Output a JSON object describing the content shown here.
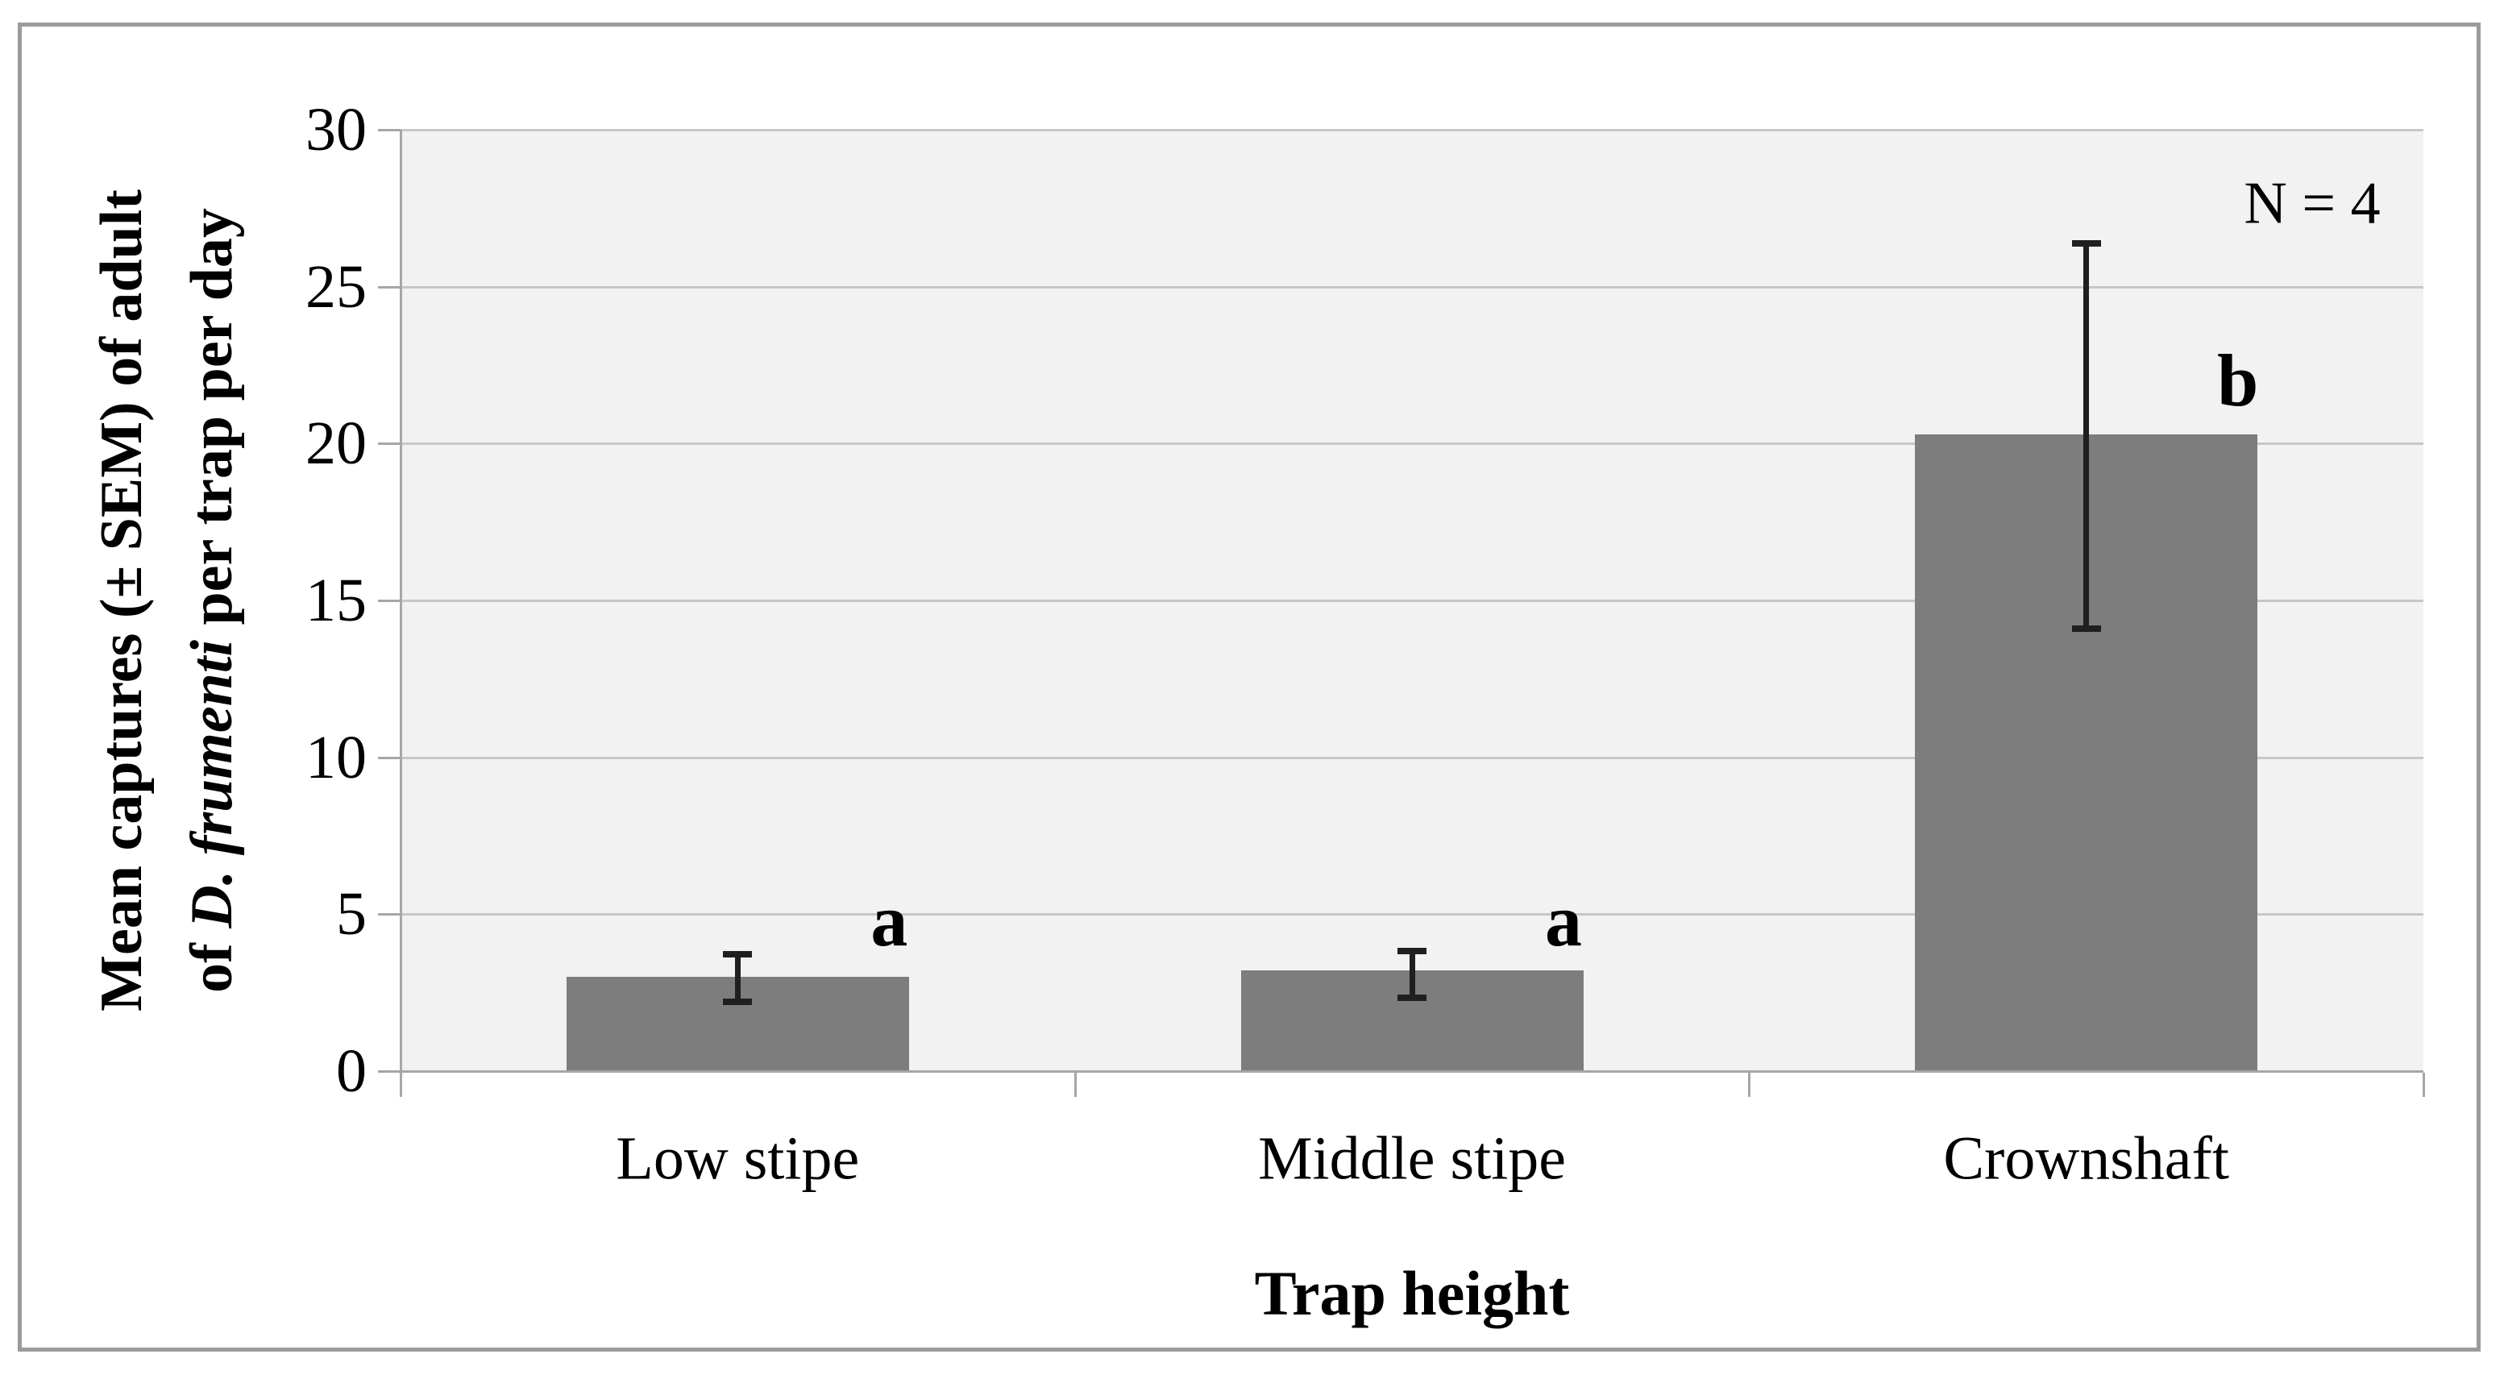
{
  "figure": {
    "annotation": "N = 4",
    "x_axis_title": "Trap height",
    "y_axis_title_line1": "Mean captures (± SEM) of adult",
    "y_axis_title_line2_prefix": "of ",
    "y_axis_title_line2_italic": "D. frumenti",
    "y_axis_title_line2_suffix": " per trap per day"
  },
  "chart_data": {
    "type": "bar",
    "title": "",
    "xlabel": "Trap height",
    "ylabel": "Mean captures (± SEM) of adult of D. frumenti per trap per day",
    "categories": [
      "Low stipe",
      "Middle stipe",
      "Crownshaft"
    ],
    "values": [
      3.0,
      3.2,
      20.3
    ],
    "error_bars": {
      "upper": [
        3.75,
        3.85,
        26.4
      ],
      "lower": [
        2.2,
        2.35,
        14.1
      ]
    },
    "significance_letters": [
      "a",
      "a",
      "b"
    ],
    "significance_letter_y": [
      4.8,
      4.8,
      22.0
    ],
    "annotation": "N = 4",
    "sample_size": 4,
    "ylim": [
      0,
      30
    ],
    "yticks": [
      0,
      5,
      10,
      15,
      20,
      25,
      30
    ],
    "grid": true,
    "legend_position": "none",
    "colors": {
      "bar": "#7d7d7d",
      "plot_background": "#f2f2f2",
      "gridline": "#c7c7c7",
      "axis": "#a6a6a6",
      "frame_border": "#9b9b9b",
      "error_bar": "#1f1f1f",
      "text": "#000000"
    }
  }
}
